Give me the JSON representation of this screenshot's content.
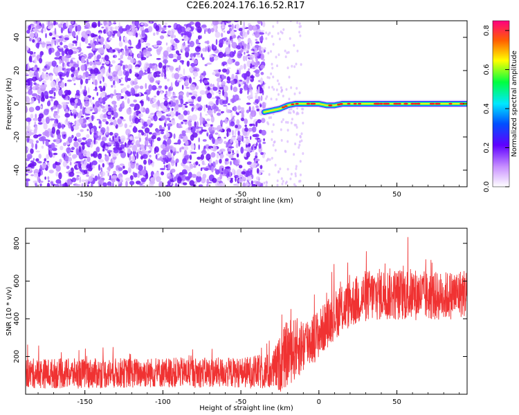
{
  "title": "C2E6.2024.176.16.52.R17",
  "chart_data": [
    {
      "type": "heatmap",
      "xlabel": "Height of straight line (km)",
      "ylabel": "Frequency (Hz)",
      "xlim": [
        -188,
        95
      ],
      "ylim": [
        -50,
        50
      ],
      "xticks": [
        -150,
        -100,
        -50,
        0,
        50
      ],
      "yticks": [
        -40,
        -20,
        0,
        20,
        40
      ],
      "noise_region_x": [
        -188,
        -35
      ],
      "signal_trace": {
        "x": [
          -35,
          -30,
          -25,
          -20,
          -15,
          -10,
          -5,
          0,
          5,
          10,
          15,
          20,
          30,
          40,
          50,
          60,
          70,
          80,
          90,
          95
        ],
        "y": [
          -5,
          -4,
          -3,
          -1,
          0,
          0,
          0,
          0,
          -1,
          -1,
          0,
          0,
          0,
          0,
          0,
          0,
          0,
          0,
          0,
          0
        ]
      },
      "colorbar": {
        "label": "Normalized spectral amplitude",
        "range": [
          0.0,
          0.85
        ],
        "ticks": [
          0.0,
          0.2,
          0.4,
          0.6,
          0.8
        ]
      },
      "grid": false
    },
    {
      "type": "line",
      "xlabel": "Height of straight line (km)",
      "ylabel": "SNR (10 * v/v)",
      "xlim": [
        -188,
        95
      ],
      "ylim": [
        0,
        880
      ],
      "xticks": [
        -150,
        -100,
        -50,
        0,
        50
      ],
      "yticks": [
        200,
        400,
        600,
        800
      ],
      "series": [
        {
          "color": "#f03232",
          "x": [
            -188,
            -150,
            -100,
            -50,
            -30,
            -25,
            -20,
            -10,
            0,
            10,
            20,
            30,
            40,
            50,
            60,
            70,
            80,
            95
          ],
          "mean": [
            110,
            110,
            115,
            115,
            120,
            160,
            220,
            260,
            320,
            420,
            480,
            520,
            530,
            530,
            530,
            520,
            520,
            540
          ],
          "noise": [
            80,
            80,
            80,
            80,
            100,
            150,
            180,
            150,
            130,
            130,
            130,
            140,
            140,
            140,
            140,
            130,
            130,
            130
          ]
        }
      ],
      "grid": false
    }
  ]
}
